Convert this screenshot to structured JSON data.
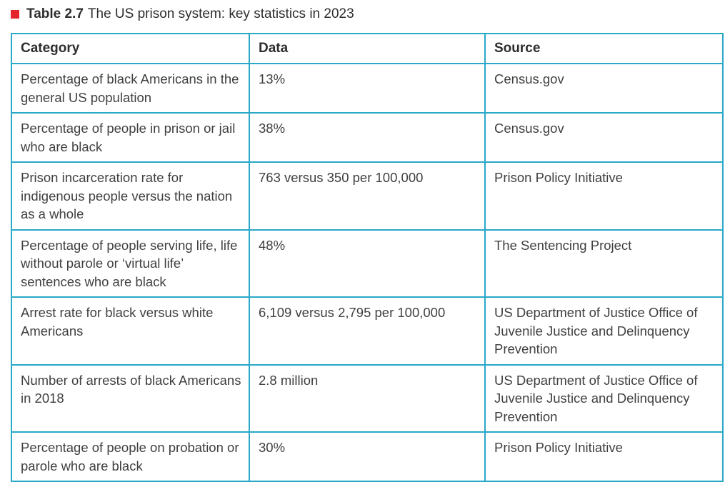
{
  "caption": {
    "label": "Table 2.7",
    "title": "The US prison system: key statistics in 2023"
  },
  "table": {
    "headers": [
      "Category",
      "Data",
      "Source"
    ],
    "rows": [
      {
        "category": "Percentage of black Americans in the general US population",
        "data": "13%",
        "source": "Census.gov"
      },
      {
        "category": "Percentage of people in prison or jail who are black",
        "data": "38%",
        "source": "Census.gov"
      },
      {
        "category": "Prison incarceration rate for indigenous people versus the nation as a whole",
        "data": "763 versus 350 per 100,000",
        "source": "Prison Policy Initiative"
      },
      {
        "category": "Percentage of people serving life, life without parole or ‘virtual life’ sentences who are black",
        "data": "48%",
        "source": "The Sentencing Project"
      },
      {
        "category": "Arrest rate for black versus white Americans",
        "data": "6,109 versus 2,795 per 100,000",
        "source": "US Department of Justice Office of Juvenile Justice and Delinquency Prevention"
      },
      {
        "category": "Number of arrests of black Americans in 2018",
        "data": "2.8 million",
        "source": "US Department of Justice Office of Juvenile Justice and Delinquency Prevention"
      },
      {
        "category": "Percentage of people on probation or parole who are black",
        "data": "30%",
        "source": "Prison Policy Initiative"
      }
    ]
  },
  "colors": {
    "marker": "#e3242b",
    "border": "#29a8c8"
  }
}
